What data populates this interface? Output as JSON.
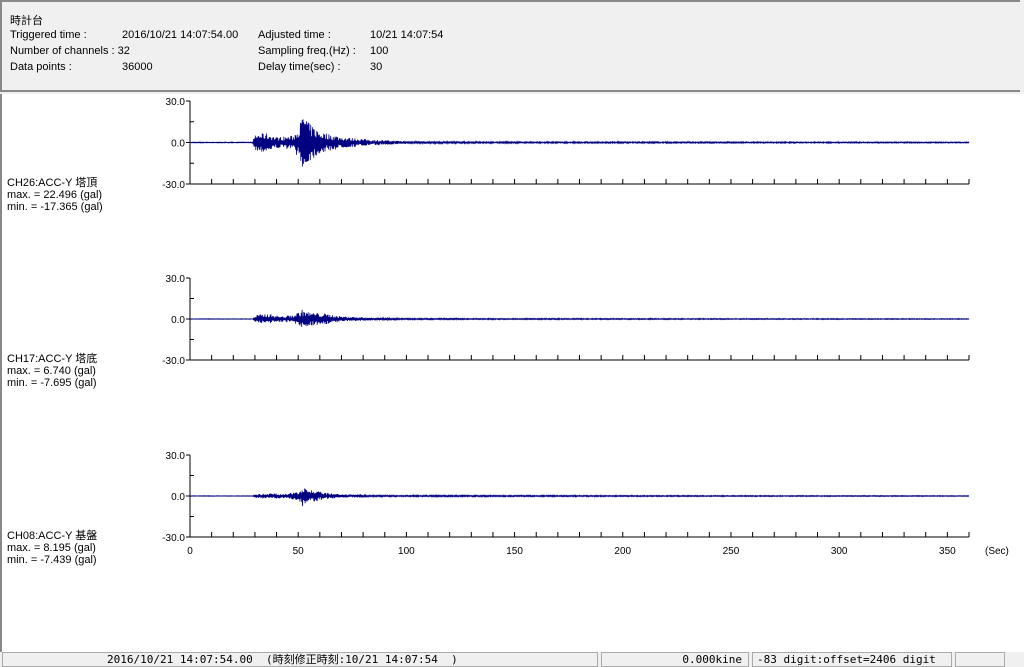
{
  "header": {
    "title": "時計台",
    "triggered_label": "Triggered time :",
    "triggered_value": "2016/10/21 14:07:54.00",
    "channels_label": "Number of channels : 32",
    "points_label": "Data points :",
    "points_value": "36000",
    "adjusted_label": "Adjusted time :",
    "adjusted_value": "10/21 14:07:54",
    "freq_label": "Sampling freq.(Hz) :",
    "freq_value": "100",
    "delay_label": "Delay time(sec) :",
    "delay_value": "30"
  },
  "chart_data": {
    "type": "line",
    "xlabel": "(Sec)",
    "xlim": [
      0,
      360
    ],
    "xticks": [
      "0",
      "50",
      "100",
      "150",
      "200",
      "250",
      "300",
      "350"
    ],
    "ylim": [
      -30,
      30
    ],
    "yticks": [
      "30.0",
      "0.0",
      "-30.0"
    ],
    "line_color": "#000080",
    "baseline_color": "#008000",
    "panels": [
      {
        "name": "CH26:ACC-Y 塔頂",
        "max_label": "max. = 22.496 (gal)",
        "min_label": "min. = -17.365 (gal)",
        "max": 22.496,
        "min": -17.365,
        "envelope": [
          [
            0,
            0.3
          ],
          [
            29,
            0.3
          ],
          [
            30,
            6
          ],
          [
            35,
            7
          ],
          [
            40,
            4
          ],
          [
            48,
            5
          ],
          [
            51,
            15
          ],
          [
            53,
            22.5
          ],
          [
            55,
            14
          ],
          [
            60,
            8
          ],
          [
            70,
            4
          ],
          [
            85,
            2
          ],
          [
            100,
            1
          ],
          [
            130,
            0.6
          ],
          [
            360,
            0.4
          ]
        ]
      },
      {
        "name": "CH17:ACC-Y 塔底",
        "max_label": "max. = 6.740 (gal)",
        "min_label": "min. = -7.695 (gal)",
        "max": 6.74,
        "min": -7.695,
        "envelope": [
          [
            0,
            0.2
          ],
          [
            29,
            0.2
          ],
          [
            31,
            3
          ],
          [
            36,
            4
          ],
          [
            42,
            2
          ],
          [
            48,
            3
          ],
          [
            52,
            7
          ],
          [
            55,
            5
          ],
          [
            62,
            4
          ],
          [
            70,
            2
          ],
          [
            85,
            1
          ],
          [
            100,
            0.5
          ],
          [
            360,
            0.3
          ]
        ]
      },
      {
        "name": "CH08:ACC-Y 基盤",
        "max_label": "max. = 8.195 (gal)",
        "min_label": "min. = -7.439 (gal)",
        "max": 8.195,
        "min": -7.439,
        "envelope": [
          [
            0,
            0.2
          ],
          [
            29,
            0.2
          ],
          [
            31,
            1.5
          ],
          [
            38,
            2
          ],
          [
            45,
            1.5
          ],
          [
            50,
            4
          ],
          [
            52,
            8
          ],
          [
            55,
            5
          ],
          [
            62,
            2.5
          ],
          [
            70,
            1.2
          ],
          [
            85,
            0.6
          ],
          [
            360,
            0.3
          ]
        ]
      }
    ]
  },
  "status": {
    "time": "2016/10/21 14:07:54.00  (時刻修正時刻:10/21 14:07:54  )",
    "velocity": "0.000kine",
    "digit": "-83 digit:offset=2406 digit"
  }
}
